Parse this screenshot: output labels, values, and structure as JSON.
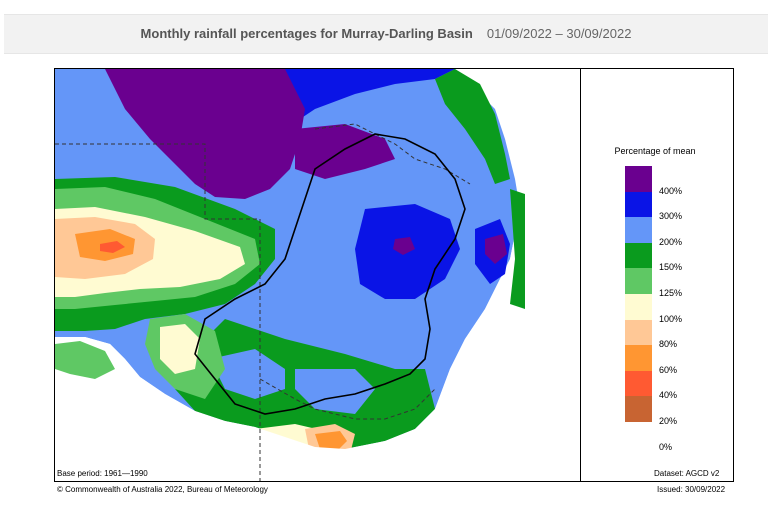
{
  "header": {
    "title": "Monthly rainfall percentages for Murray-Darling Basin",
    "date_range": "01/09/2022 – 30/09/2022"
  },
  "legend": {
    "title": "Percentage of mean",
    "items": [
      {
        "label": "400%",
        "color": "#6a008f"
      },
      {
        "label": "300%",
        "color": "#0a14e6"
      },
      {
        "label": "200%",
        "color": "#6496f8"
      },
      {
        "label": "150%",
        "color": "#0a9b1e"
      },
      {
        "label": "125%",
        "color": "#5fc864"
      },
      {
        "label": "100%",
        "color": "#fffbd2"
      },
      {
        "label": "80%",
        "color": "#ffc896"
      },
      {
        "label": "60%",
        "color": "#ff9632"
      },
      {
        "label": "40%",
        "color": "#ff5a32"
      },
      {
        "label": "20%",
        "color": "#c86432"
      },
      {
        "label": "0%",
        "color": ""
      }
    ]
  },
  "footer": {
    "base_period": "Base period: 1961—1990",
    "dataset": "Dataset: AGCD v2",
    "copyright": "© Commonwealth of Australia 2022, Bureau of Meteorology",
    "issued": "Issued: 30/09/2022"
  }
}
